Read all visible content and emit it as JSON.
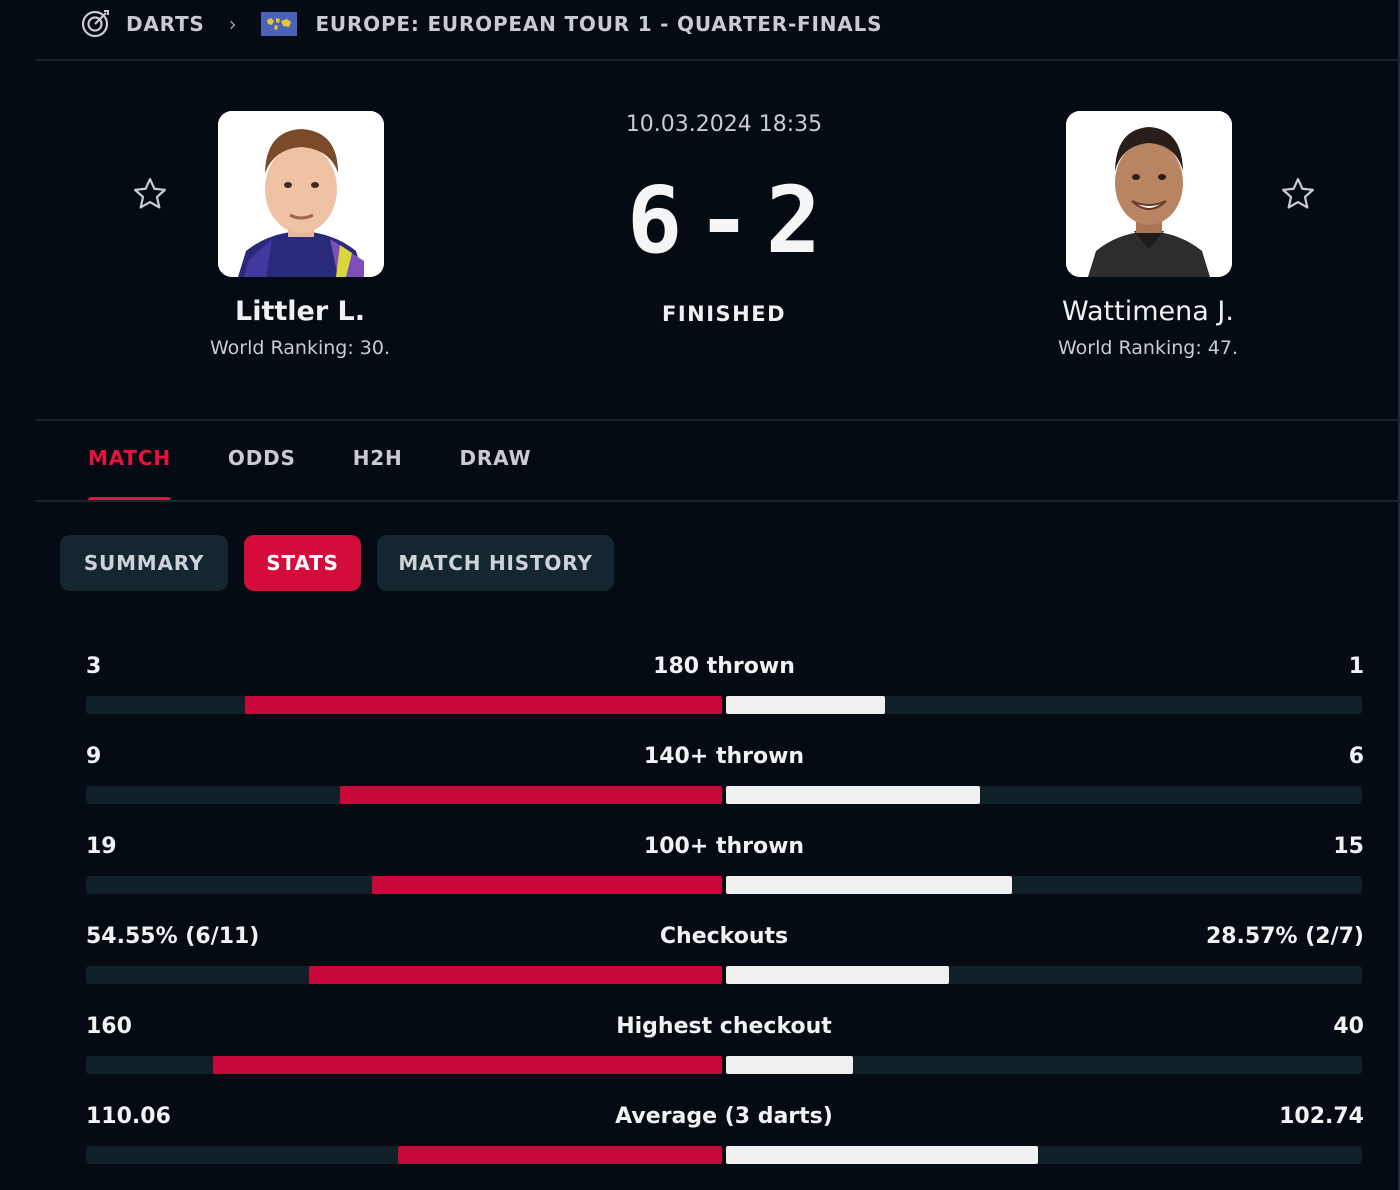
{
  "breadcrumb": {
    "sport": "DARTS",
    "competition": "EUROPE: EUROPEAN TOUR 1 - QUARTER-FINALS"
  },
  "match": {
    "datetime": "10.03.2024 18:35",
    "home_score": "6",
    "separator": "-",
    "away_score": "2",
    "status": "FINISHED"
  },
  "home": {
    "name": "Littler L.",
    "ranking": "World Ranking: 30."
  },
  "away": {
    "name": "Wattimena J.",
    "ranking": "World Ranking: 47."
  },
  "tabs": [
    {
      "label": "MATCH",
      "active": true
    },
    {
      "label": "ODDS",
      "active": false
    },
    {
      "label": "H2H",
      "active": false
    },
    {
      "label": "DRAW",
      "active": false
    }
  ],
  "subtabs": [
    {
      "label": "SUMMARY",
      "active": false
    },
    {
      "label": "STATS",
      "active": true
    },
    {
      "label": "MATCH HISTORY",
      "active": false
    }
  ],
  "stats": [
    {
      "label": "180 thrown",
      "home": "3",
      "away": "1",
      "home_share": 0.75,
      "away_share": 0.25
    },
    {
      "label": "140+ thrown",
      "home": "9",
      "away": "6",
      "home_share": 0.6,
      "away_share": 0.4
    },
    {
      "label": "100+ thrown",
      "home": "19",
      "away": "15",
      "home_share": 0.55,
      "away_share": 0.45
    },
    {
      "label": "Checkouts",
      "home": "54.55% (6/11)",
      "away": "28.57% (2/7)",
      "home_share": 0.65,
      "away_share": 0.35
    },
    {
      "label": "Highest checkout",
      "home": "160",
      "away": "40",
      "home_share": 0.8,
      "away_share": 0.2
    },
    {
      "label": "Average (3 darts)",
      "home": "110.06",
      "away": "102.74",
      "home_share": 0.51,
      "away_share": 0.49
    }
  ],
  "colors": {
    "background": "#050b13",
    "accent": "#e5123f",
    "home_bar": "#c8073a",
    "away_bar": "#eef0f2",
    "track": "#0f2029"
  }
}
